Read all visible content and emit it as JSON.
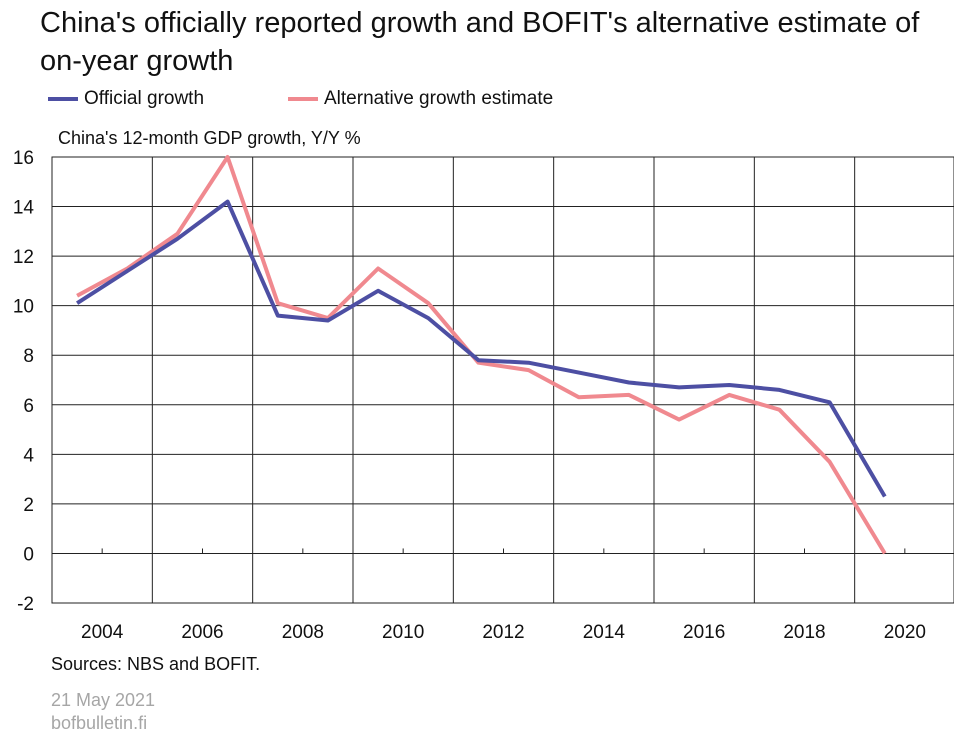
{
  "chart_data": {
    "type": "line",
    "title": "China's officially reported growth and BOFIT's alternative estimate of on-year growth",
    "subtitle": "China's 12-month GDP growth, Y/Y %",
    "ylabel": "China's 12-month GDP growth, Y/Y %",
    "xlabel": "",
    "ylim": [
      -2,
      16
    ],
    "xlim": [
      2003,
      2021
    ],
    "yticks": [
      "-2",
      "0",
      "2",
      "4",
      "6",
      "8",
      "10",
      "12",
      "14",
      "16"
    ],
    "xticks": [
      "2004",
      "2006",
      "2008",
      "2010",
      "2012",
      "2014",
      "2016",
      "2018",
      "2020"
    ],
    "grid": true,
    "legend_position": "top-left",
    "series": [
      {
        "name": "Official growth",
        "color": "#4d4fa3",
        "x": [
          2003.5,
          2004.5,
          2005.5,
          2006.5,
          2007.5,
          2008.5,
          2009.5,
          2010.5,
          2011.5,
          2012.5,
          2013.5,
          2014.5,
          2015.5,
          2016.5,
          2017.5,
          2018.5,
          2019.6
        ],
        "values": [
          10.1,
          11.4,
          12.7,
          14.2,
          9.6,
          9.4,
          10.6,
          9.5,
          7.8,
          7.7,
          7.3,
          6.9,
          6.7,
          6.8,
          6.6,
          6.1,
          2.3
        ]
      },
      {
        "name": "Alternative growth estimate",
        "color": "#f0898f",
        "x": [
          2003.5,
          2004.5,
          2005.5,
          2006.5,
          2007.5,
          2008.5,
          2009.5,
          2010.5,
          2011.5,
          2012.5,
          2013.5,
          2014.5,
          2015.5,
          2016.5,
          2017.5,
          2018.5,
          2019.6
        ],
        "values": [
          10.4,
          11.5,
          12.9,
          16.0,
          10.1,
          9.5,
          11.5,
          10.1,
          7.7,
          7.4,
          6.3,
          6.4,
          5.4,
          6.4,
          5.8,
          3.7,
          0.0
        ]
      }
    ]
  },
  "sources": "Sources: NBS and BOFIT.",
  "date": "21 May 2021",
  "site": "bofbulletin.fi"
}
